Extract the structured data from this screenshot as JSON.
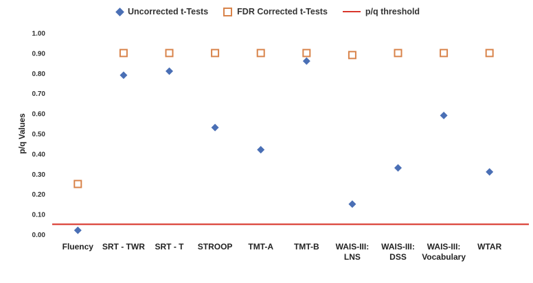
{
  "chart_data": {
    "type": "scatter",
    "categories": [
      "Fluency",
      "SRT - TWR",
      "SRT - T",
      "STROOP",
      "TMT-A",
      "TMT-B",
      "WAIS-III:\nLNS",
      "WAIS-III:\nDSS",
      "WAIS-III:\nVocabulary",
      "WTAR"
    ],
    "ylabel": "p/q Values",
    "ylim": [
      0,
      1
    ],
    "yticks": [
      "0.00",
      "0.10",
      "0.20",
      "0.30",
      "0.40",
      "0.50",
      "0.60",
      "0.70",
      "0.80",
      "0.90",
      "1.00"
    ],
    "legend_position": "top",
    "grid": false,
    "series": [
      {
        "name": "Uncorrected t-Tests",
        "marker": "diamond",
        "color": "#4a6fb5",
        "values": [
          0.02,
          0.79,
          0.81,
          0.53,
          0.42,
          0.86,
          0.15,
          0.33,
          0.59,
          0.31
        ]
      },
      {
        "name": "FDR Corrected t-Tests",
        "marker": "square",
        "color": "#d8834a",
        "values": [
          0.25,
          0.9,
          0.9,
          0.9,
          0.9,
          0.9,
          0.89,
          0.9,
          0.9,
          0.9
        ]
      }
    ],
    "threshold": {
      "name": "p/q threshold",
      "value": 0.05,
      "color": "#d9362b"
    }
  }
}
